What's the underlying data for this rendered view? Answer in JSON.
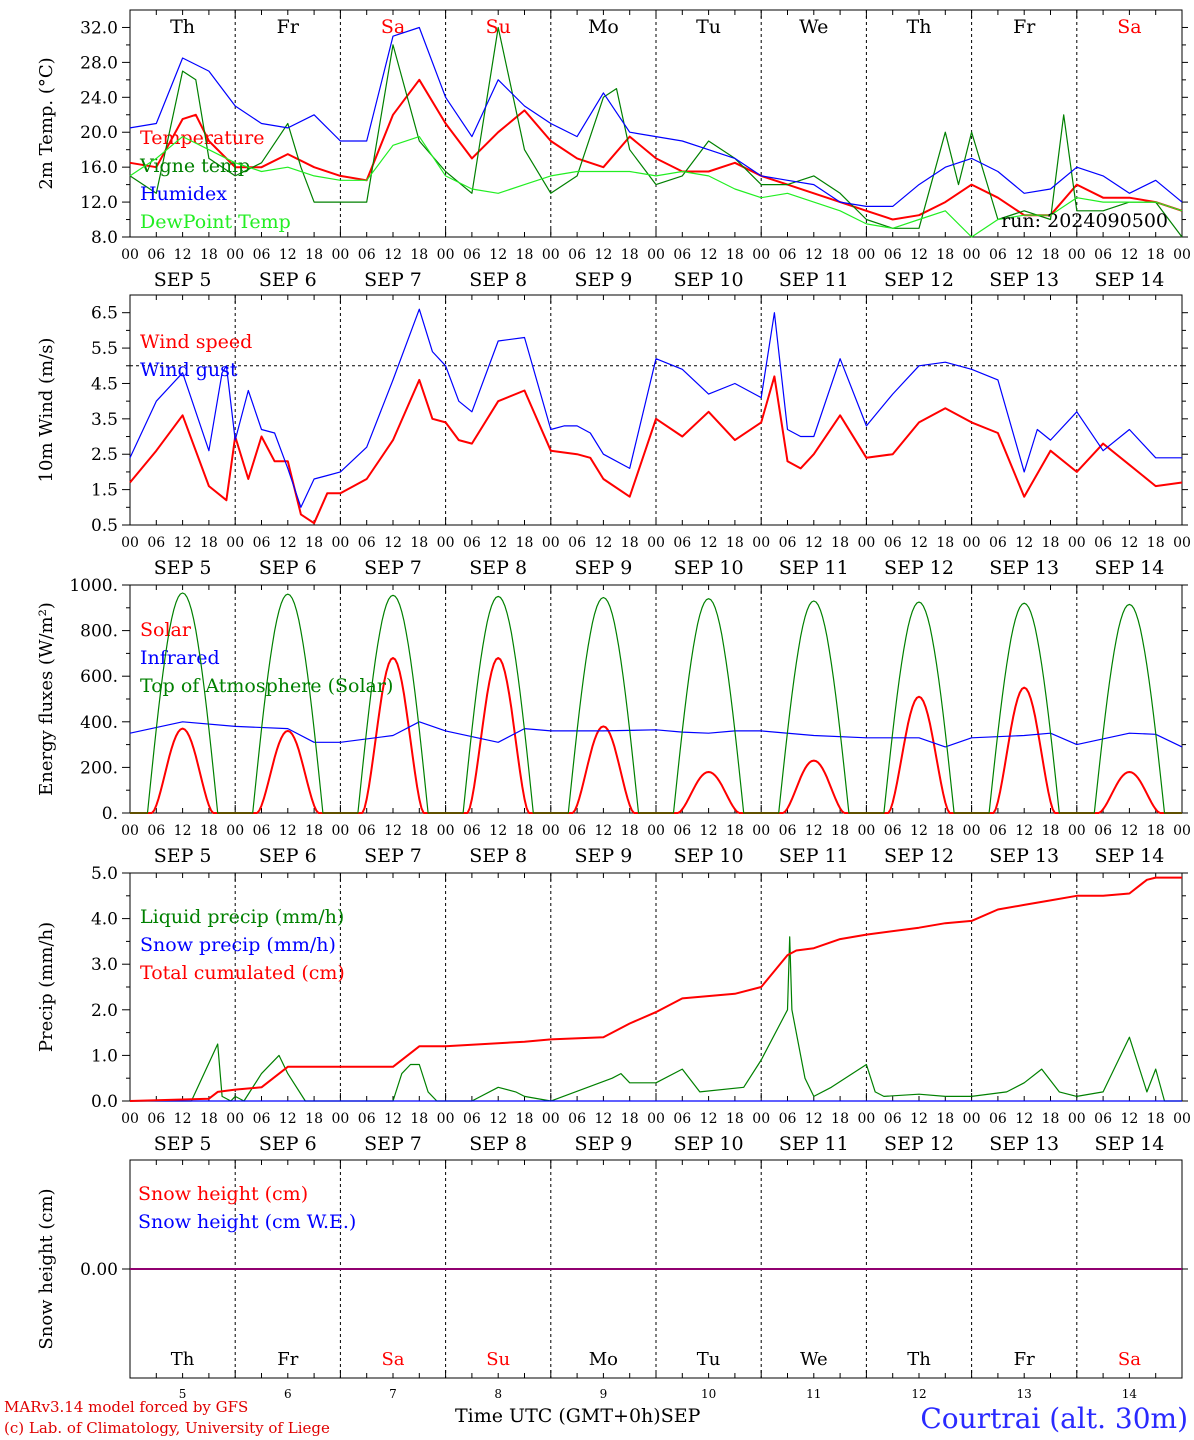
{
  "run_label": "run: 2024090500",
  "footer": {
    "credit1": "MARv3.14 model forced by GFS",
    "credit2": "(c) Lab. of Climatology, University of Liege",
    "x_title": "Time UTC (GMT+0h)",
    "x_month": "SEP",
    "location": "Courtrai (alt. 30m)"
  },
  "days": {
    "weekday": [
      "Th",
      "Fr",
      "Sa",
      "Su",
      "Mo",
      "Tu",
      "We",
      "Th",
      "Fr",
      "Sa"
    ],
    "weekend": [
      false,
      false,
      true,
      true,
      false,
      false,
      false,
      false,
      false,
      true
    ],
    "date_labels": [
      "SEP  5",
      "SEP  6",
      "SEP  7",
      "SEP  8",
      "SEP  9",
      "SEP 10",
      "SEP 11",
      "SEP 12",
      "SEP 13",
      "SEP 14"
    ],
    "day_numbers": [
      "5",
      "6",
      "7",
      "8",
      "9",
      "10",
      "11",
      "12",
      "13",
      "14"
    ],
    "hour_ticks": [
      "00",
      "06",
      "12",
      "18"
    ],
    "final_tick": "00"
  },
  "colors": {
    "red": "#ff0000",
    "green": "#008000",
    "blue": "#0000ff",
    "lightgreen": "#22ee22",
    "purple": "#800080"
  },
  "chart_data": [
    {
      "type": "line",
      "ylabel": "2m Temp. (°C)",
      "ylim": [
        8,
        34
      ],
      "yticks": [
        "8.0",
        "12.0",
        "16.0",
        "20.0",
        "24.0",
        "28.0",
        "32.0"
      ],
      "show_weekdays": true,
      "x_unit": "hours since SEP 5 00 UTC",
      "series": [
        {
          "name": "Temperature",
          "color": "red",
          "x": [
            0,
            6,
            12,
            15,
            18,
            24,
            30,
            36,
            42,
            48,
            54,
            60,
            66,
            72,
            78,
            84,
            90,
            96,
            102,
            108,
            114,
            120,
            126,
            132,
            138,
            144,
            150,
            156,
            162,
            168,
            174,
            180,
            186,
            192,
            198,
            204,
            210,
            216,
            222,
            228,
            234,
            240
          ],
          "values": [
            16.5,
            16,
            21.5,
            22,
            19,
            16,
            16,
            17.5,
            16,
            15,
            14.5,
            22,
            26,
            21,
            17,
            20,
            22.5,
            19,
            17,
            16,
            19.5,
            17,
            15.5,
            15.5,
            16.5,
            15,
            14,
            13,
            12,
            11,
            10,
            10.5,
            12,
            14,
            12.5,
            10.5,
            10.5,
            14,
            12.5,
            12.5,
            12,
            11
          ]
        },
        {
          "name": "Vigne temp",
          "color": "green",
          "x": [
            0,
            6,
            12,
            15,
            18,
            24,
            30,
            36,
            39,
            42,
            48,
            54,
            60,
            66,
            72,
            78,
            84,
            90,
            96,
            102,
            108,
            111,
            114,
            120,
            126,
            132,
            138,
            144,
            150,
            156,
            162,
            168,
            174,
            180,
            186,
            189,
            192,
            198,
            204,
            210,
            213,
            216,
            222,
            228,
            234,
            240
          ],
          "values": [
            15,
            13,
            27,
            26,
            17,
            15,
            16.5,
            21,
            16,
            12,
            12,
            12,
            30,
            19,
            15.5,
            13,
            32,
            18,
            13,
            15,
            24,
            25,
            18,
            14,
            15,
            19,
            17,
            14,
            14,
            15,
            13,
            10,
            9,
            9,
            20,
            14,
            20,
            10,
            11,
            10,
            22,
            11,
            11,
            12,
            12,
            8
          ]
        },
        {
          "name": "Humidex",
          "color": "blue",
          "x": [
            0,
            6,
            12,
            18,
            24,
            30,
            36,
            42,
            48,
            54,
            60,
            66,
            72,
            78,
            84,
            90,
            96,
            102,
            108,
            114,
            120,
            126,
            132,
            138,
            144,
            150,
            156,
            162,
            168,
            174,
            180,
            186,
            192,
            198,
            204,
            210,
            216,
            222,
            228,
            234,
            240
          ],
          "values": [
            20.5,
            21,
            28.5,
            27,
            23,
            21,
            20.5,
            22,
            19,
            19,
            31,
            32,
            24,
            19.5,
            26,
            23,
            21,
            19.5,
            24.5,
            20,
            19.5,
            19,
            18,
            17,
            15,
            14.5,
            14,
            12,
            11.5,
            11.5,
            14,
            16,
            17,
            15.5,
            13,
            13.5,
            16,
            15,
            13,
            14.5,
            12
          ]
        },
        {
          "name": "DewPoint Temp",
          "color": "lightgreen",
          "x": [
            0,
            6,
            12,
            18,
            24,
            30,
            36,
            42,
            48,
            54,
            60,
            66,
            72,
            78,
            84,
            90,
            96,
            102,
            108,
            114,
            120,
            126,
            132,
            138,
            144,
            150,
            156,
            162,
            168,
            174,
            180,
            186,
            192,
            198,
            204,
            210,
            216,
            222,
            228,
            234,
            240
          ],
          "values": [
            15,
            17,
            19.5,
            18,
            16.5,
            15.5,
            16,
            15,
            14.5,
            14.5,
            18.5,
            19.5,
            15,
            13.5,
            13,
            14,
            15,
            15.5,
            15.5,
            15.5,
            15,
            15.5,
            15,
            13.5,
            12.5,
            13,
            12,
            11,
            9.5,
            9,
            10,
            11,
            8,
            10,
            10.5,
            10.5,
            12.5,
            12,
            12,
            12,
            11
          ]
        }
      ]
    },
    {
      "type": "line",
      "ylabel": "10m Wind (m/s)",
      "ylim": [
        0.5,
        7
      ],
      "yticks": [
        "0.5",
        "1.5",
        "2.5",
        "3.5",
        "4.5",
        "5.5",
        "6.5"
      ],
      "reference_line": 5,
      "series": [
        {
          "name": "Wind speed",
          "color": "red",
          "x": [
            0,
            6,
            12,
            18,
            22,
            24,
            27,
            30,
            33,
            36,
            39,
            42,
            45,
            48,
            54,
            60,
            66,
            69,
            72,
            75,
            78,
            84,
            90,
            96,
            102,
            105,
            108,
            114,
            120,
            126,
            132,
            138,
            144,
            147,
            150,
            153,
            156,
            162,
            168,
            174,
            180,
            186,
            192,
            198,
            204,
            210,
            216,
            222,
            228,
            234,
            240
          ],
          "values": [
            1.7,
            2.6,
            3.6,
            1.6,
            1.2,
            3,
            1.8,
            3,
            2.3,
            2.3,
            0.8,
            0.55,
            1.4,
            1.4,
            1.8,
            2.9,
            4.6,
            3.5,
            3.4,
            2.9,
            2.8,
            4,
            4.3,
            2.6,
            2.5,
            2.4,
            1.8,
            1.3,
            3.5,
            3,
            3.7,
            2.9,
            3.4,
            4.7,
            2.3,
            2.1,
            2.5,
            3.6,
            2.4,
            2.5,
            3.4,
            3.8,
            3.4,
            3.1,
            1.3,
            2.6,
            2.0,
            2.8,
            2.2,
            1.6,
            1.7
          ]
        },
        {
          "name": "Wind gust",
          "color": "blue",
          "x": [
            0,
            6,
            12,
            18,
            21,
            22,
            24,
            27,
            30,
            33,
            36,
            39,
            42,
            45,
            48,
            54,
            60,
            66,
            69,
            72,
            75,
            78,
            84,
            90,
            96,
            99,
            102,
            105,
            108,
            114,
            120,
            126,
            132,
            138,
            144,
            147,
            150,
            153,
            156,
            162,
            168,
            174,
            180,
            186,
            192,
            198,
            204,
            207,
            210,
            216,
            222,
            228,
            234,
            240
          ],
          "values": [
            2.4,
            4,
            4.8,
            2.6,
            4.8,
            5,
            2.9,
            4.3,
            3.2,
            3.1,
            2.1,
            1,
            1.8,
            1.9,
            2,
            2.7,
            4.6,
            6.6,
            5.4,
            5,
            4,
            3.7,
            5.7,
            5.8,
            3.2,
            3.3,
            3.3,
            3.1,
            2.5,
            2.1,
            5.2,
            4.9,
            4.2,
            4.5,
            4.1,
            6.5,
            3.2,
            3,
            3,
            5.2,
            3.3,
            4.2,
            5,
            5.1,
            4.9,
            4.6,
            2,
            3.2,
            2.9,
            3.7,
            2.6,
            3.2,
            2.4,
            2.4
          ]
        }
      ]
    },
    {
      "type": "line",
      "ylabel": "Energy fluxes (W/m²)",
      "ylim": [
        0,
        1000
      ],
      "yticks": [
        "0.",
        "200.",
        "400.",
        "600.",
        "800.",
        "1000."
      ],
      "series": [
        {
          "name": "Solar",
          "color": "red",
          "peaks": [
            370,
            360,
            680,
            680,
            380,
            180,
            230,
            510,
            550,
            180
          ]
        },
        {
          "name": "Infrared",
          "color": "blue",
          "x": [
            0,
            12,
            24,
            36,
            42,
            48,
            60,
            66,
            72,
            84,
            90,
            96,
            108,
            120,
            126,
            132,
            138,
            144,
            156,
            168,
            180,
            186,
            192,
            204,
            210,
            216,
            228,
            234,
            240
          ],
          "values": [
            350,
            400,
            380,
            370,
            310,
            310,
            340,
            400,
            360,
            310,
            370,
            360,
            360,
            365,
            355,
            350,
            360,
            360,
            340,
            330,
            330,
            290,
            330,
            340,
            350,
            300,
            350,
            345,
            290
          ]
        },
        {
          "name": "Top of Atmosphere (Solar)",
          "color": "green",
          "peaks": [
            965,
            960,
            955,
            950,
            945,
            940,
            930,
            925,
            920,
            915
          ]
        }
      ]
    },
    {
      "type": "line",
      "ylabel": "Precip (mm/h)",
      "ylim": [
        0,
        5
      ],
      "yticks": [
        "0.0",
        "1.0",
        "2.0",
        "3.0",
        "4.0",
        "5.0"
      ],
      "series": [
        {
          "name": "Liquid precip (mm/h)",
          "color": "green",
          "x": [
            0,
            14,
            20,
            21,
            23,
            24,
            26,
            30,
            34,
            36,
            40,
            42,
            60,
            62,
            64,
            66,
            68,
            70,
            72,
            78,
            84,
            88,
            90,
            96,
            110,
            112,
            114,
            120,
            126,
            130,
            140,
            144,
            150,
            150.5,
            151,
            154,
            156,
            160,
            168,
            170,
            172,
            180,
            186,
            192,
            200,
            204,
            208,
            212,
            216,
            222,
            228,
            232,
            234,
            236,
            240
          ],
          "values": [
            0,
            0,
            1.25,
            0.1,
            0,
            0.1,
            0,
            0.6,
            1,
            0.6,
            0,
            0,
            0,
            0.6,
            0.8,
            0.8,
            0.2,
            0,
            0,
            0,
            0.3,
            0.2,
            0.1,
            0,
            0.5,
            0.6,
            0.4,
            0.4,
            0.7,
            0.2,
            0.3,
            0.9,
            2,
            3.6,
            2,
            0.5,
            0.1,
            0.3,
            0.8,
            0.2,
            0.1,
            0.15,
            0.1,
            0.1,
            0.2,
            0.4,
            0.7,
            0.2,
            0.1,
            0.2,
            1.4,
            0.2,
            0.7,
            0,
            0
          ]
        },
        {
          "name": "Snow precip (mm/h)",
          "color": "blue",
          "x": [
            0,
            240
          ],
          "values": [
            0,
            0
          ]
        },
        {
          "name": "Total cumulated (cm)",
          "color": "red",
          "x": [
            0,
            18,
            20,
            24,
            30,
            36,
            48,
            60,
            66,
            72,
            90,
            96,
            108,
            114,
            120,
            126,
            138,
            144,
            150,
            152,
            156,
            162,
            168,
            180,
            186,
            192,
            198,
            204,
            210,
            216,
            222,
            228,
            232,
            234,
            240
          ],
          "values": [
            0,
            0.05,
            0.2,
            0.25,
            0.3,
            0.75,
            0.75,
            0.75,
            1.2,
            1.2,
            1.3,
            1.35,
            1.4,
            1.7,
            1.95,
            2.25,
            2.35,
            2.5,
            3.2,
            3.3,
            3.35,
            3.55,
            3.65,
            3.8,
            3.9,
            3.95,
            4.2,
            4.3,
            4.4,
            4.5,
            4.5,
            4.55,
            4.85,
            4.9,
            4.9
          ]
        }
      ]
    },
    {
      "type": "line",
      "ylabel": "Snow height (cm)",
      "ylim": [
        -1,
        1
      ],
      "yticks": [
        "0.00"
      ],
      "series": [
        {
          "name": "Snow height (cm)",
          "color": "red",
          "x": [
            0,
            240
          ],
          "values": [
            0,
            0
          ]
        },
        {
          "name": "Snow height (cm W.E.)",
          "color": "blue",
          "x": [
            0,
            240
          ],
          "values": [
            0,
            0
          ]
        }
      ]
    }
  ]
}
